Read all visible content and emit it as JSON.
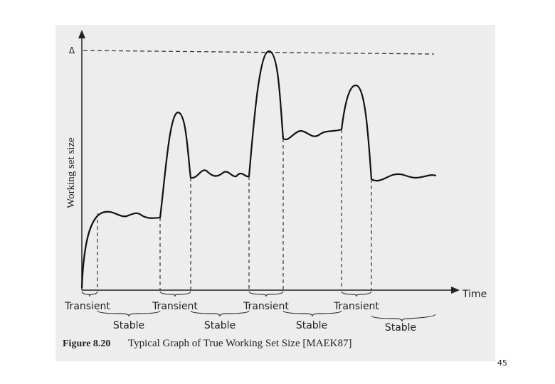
{
  "figure": {
    "axes": {
      "y_label": "Working set size",
      "x_label": "Time",
      "max_label": "Δ"
    },
    "phases": [
      {
        "label": "Transient"
      },
      {
        "label": "Stable"
      },
      {
        "label": "Transient"
      },
      {
        "label": "Stable"
      },
      {
        "label": "Transient"
      },
      {
        "label": "Stable"
      },
      {
        "label": "Transient"
      },
      {
        "label": "Stable"
      }
    ],
    "caption": {
      "number": "Figure 8.20",
      "text": "Typical Graph of True Working Set Size [MAEK87]"
    }
  },
  "page_number": "45"
}
